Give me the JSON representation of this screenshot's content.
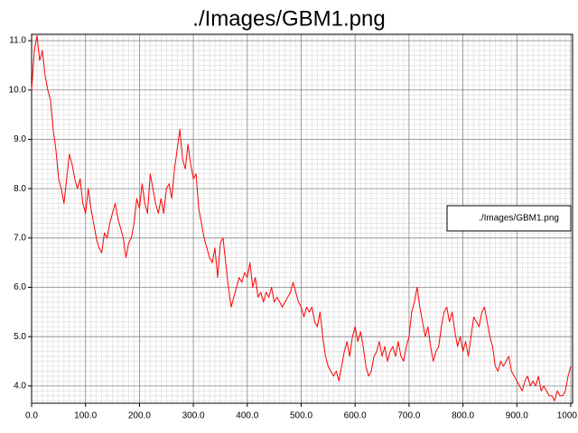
{
  "chart_data": {
    "type": "line",
    "title": "./Images/GBM1.png",
    "x": [
      0,
      5,
      10,
      15,
      20,
      25,
      30,
      35,
      40,
      45,
      50,
      55,
      60,
      65,
      70,
      75,
      80,
      85,
      90,
      95,
      100,
      105,
      110,
      115,
      120,
      125,
      130,
      135,
      140,
      145,
      150,
      155,
      160,
      165,
      170,
      175,
      180,
      185,
      190,
      195,
      200,
      205,
      210,
      215,
      220,
      225,
      230,
      235,
      240,
      245,
      250,
      255,
      260,
      265,
      270,
      275,
      280,
      285,
      290,
      295,
      300,
      305,
      310,
      315,
      320,
      325,
      330,
      335,
      340,
      345,
      350,
      355,
      360,
      365,
      370,
      375,
      380,
      385,
      390,
      395,
      400,
      405,
      410,
      415,
      420,
      425,
      430,
      435,
      440,
      445,
      450,
      455,
      460,
      465,
      470,
      475,
      480,
      485,
      490,
      495,
      500,
      505,
      510,
      515,
      520,
      525,
      530,
      535,
      540,
      545,
      550,
      555,
      560,
      565,
      570,
      575,
      580,
      585,
      590,
      595,
      600,
      605,
      610,
      615,
      620,
      625,
      630,
      635,
      640,
      645,
      650,
      655,
      660,
      665,
      670,
      675,
      680,
      685,
      690,
      695,
      700,
      705,
      710,
      715,
      720,
      725,
      730,
      735,
      740,
      745,
      750,
      755,
      760,
      765,
      770,
      775,
      780,
      785,
      790,
      795,
      800,
      805,
      810,
      815,
      820,
      825,
      830,
      835,
      840,
      845,
      850,
      855,
      860,
      865,
      870,
      875,
      880,
      885,
      890,
      895,
      900,
      905,
      910,
      915,
      920,
      925,
      930,
      935,
      940,
      945,
      950,
      955,
      960,
      965,
      970,
      975,
      980,
      985,
      990,
      995,
      1000
    ],
    "series": [
      {
        "name": "./Images/GBM1.png",
        "color": "#ff0000",
        "values": [
          10.0,
          10.8,
          11.1,
          10.6,
          10.8,
          10.3,
          10.0,
          9.8,
          9.2,
          8.8,
          8.2,
          8.0,
          7.7,
          8.2,
          8.7,
          8.5,
          8.2,
          8.0,
          8.2,
          7.7,
          7.5,
          8.0,
          7.6,
          7.3,
          7.0,
          6.8,
          6.7,
          7.1,
          7.0,
          7.3,
          7.5,
          7.7,
          7.4,
          7.2,
          7.0,
          6.6,
          6.9,
          7.0,
          7.3,
          7.8,
          7.6,
          8.1,
          7.7,
          7.5,
          8.3,
          8.0,
          7.7,
          7.5,
          7.8,
          7.5,
          8.0,
          8.1,
          7.8,
          8.4,
          8.8,
          9.2,
          8.6,
          8.4,
          8.9,
          8.5,
          8.2,
          8.3,
          7.6,
          7.3,
          7.0,
          6.8,
          6.6,
          6.5,
          6.8,
          6.2,
          6.9,
          7.0,
          6.5,
          6.0,
          5.6,
          5.8,
          6.0,
          6.2,
          6.1,
          6.3,
          6.2,
          6.5,
          6.0,
          6.2,
          5.8,
          5.9,
          5.7,
          5.9,
          5.8,
          6.0,
          5.7,
          5.8,
          5.7,
          5.6,
          5.7,
          5.8,
          5.9,
          6.1,
          5.9,
          5.7,
          5.6,
          5.4,
          5.6,
          5.5,
          5.6,
          5.3,
          5.2,
          5.5,
          5.0,
          4.6,
          4.4,
          4.3,
          4.2,
          4.3,
          4.1,
          4.4,
          4.7,
          4.9,
          4.6,
          5.0,
          5.2,
          4.9,
          5.1,
          4.8,
          4.4,
          4.2,
          4.3,
          4.6,
          4.7,
          4.9,
          4.6,
          4.8,
          4.5,
          4.7,
          4.8,
          4.6,
          4.9,
          4.6,
          4.5,
          4.8,
          5.0,
          5.5,
          5.7,
          6.0,
          5.6,
          5.3,
          5.0,
          5.2,
          4.8,
          4.5,
          4.7,
          4.8,
          5.2,
          5.5,
          5.6,
          5.3,
          5.5,
          5.1,
          4.8,
          5.0,
          4.7,
          4.9,
          4.6,
          5.0,
          5.4,
          5.3,
          5.2,
          5.5,
          5.6,
          5.3,
          5.0,
          4.8,
          4.4,
          4.3,
          4.5,
          4.4,
          4.5,
          4.6,
          4.3,
          4.2,
          4.1,
          4.0,
          3.9,
          4.1,
          4.2,
          4.0,
          4.1,
          4.0,
          4.2,
          3.9,
          4.0,
          3.9,
          3.8,
          3.8,
          3.7,
          3.9,
          3.8,
          3.8,
          3.9,
          4.2,
          4.4
        ]
      }
    ],
    "xlim": [
      0,
      1000
    ],
    "ylim": [
      3.65,
      11.13
    ],
    "xticks": [
      {
        "value": 0,
        "label": "0.0"
      },
      {
        "value": 100,
        "label": "100.0"
      },
      {
        "value": 200,
        "label": "200.0"
      },
      {
        "value": 300,
        "label": "300.0"
      },
      {
        "value": 400,
        "label": "400.0"
      },
      {
        "value": 500,
        "label": "500.0"
      },
      {
        "value": 600,
        "label": "600.0"
      },
      {
        "value": 700,
        "label": "700.0"
      },
      {
        "value": 800,
        "label": "800.0"
      },
      {
        "value": 900,
        "label": "900.0"
      },
      {
        "value": 1000,
        "label": "1000.0"
      }
    ],
    "yticks": [
      {
        "value": 4,
        "label": "4.0"
      },
      {
        "value": 5,
        "label": "5.0"
      },
      {
        "value": 6,
        "label": "6.0"
      },
      {
        "value": 7,
        "label": "7.0"
      },
      {
        "value": 8,
        "label": "8.0"
      },
      {
        "value": 9,
        "label": "9.0"
      },
      {
        "value": 10,
        "label": "10.0"
      },
      {
        "value": 11,
        "label": "11.0"
      }
    ],
    "grid": true,
    "minor_grid": {
      "x": 10,
      "y": 0.1
    },
    "legend": "center right"
  }
}
